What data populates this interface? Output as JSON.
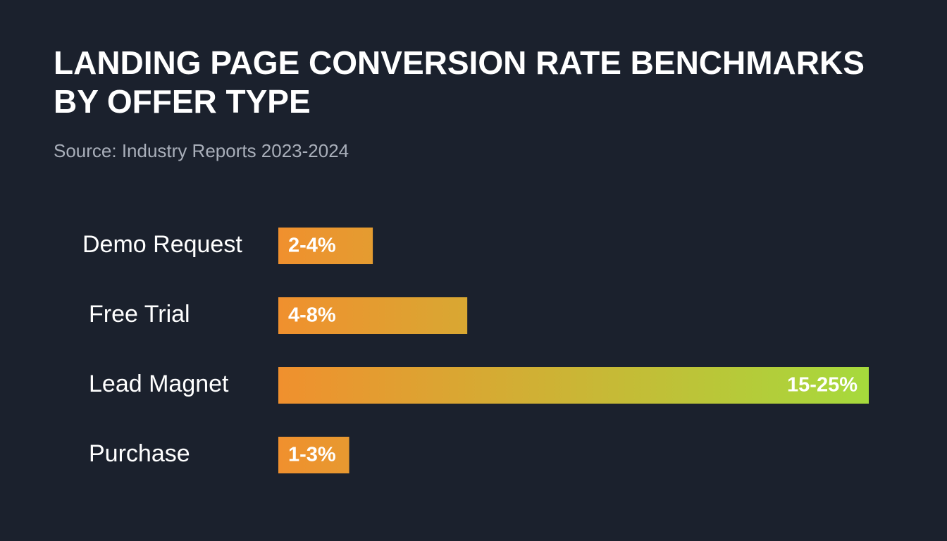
{
  "chart_data": {
    "type": "bar",
    "orientation": "horizontal",
    "title": "LANDING PAGE CONVERSION RATE BENCHMARKS BY OFFER TYPE",
    "subtitle": "Source: Industry Reports 2023-2024",
    "categories": [
      "Demo Request",
      "Free Trial",
      "Lead Magnet",
      "Purchase"
    ],
    "values": [
      [
        2,
        4
      ],
      [
        4,
        8
      ],
      [
        15,
        25
      ],
      [
        1,
        3
      ]
    ],
    "value_labels": [
      "2-4%",
      "4-8%",
      "15-25%",
      "1-3%"
    ],
    "colors": [
      "#f0902e",
      "#a6da3c"
    ]
  }
}
